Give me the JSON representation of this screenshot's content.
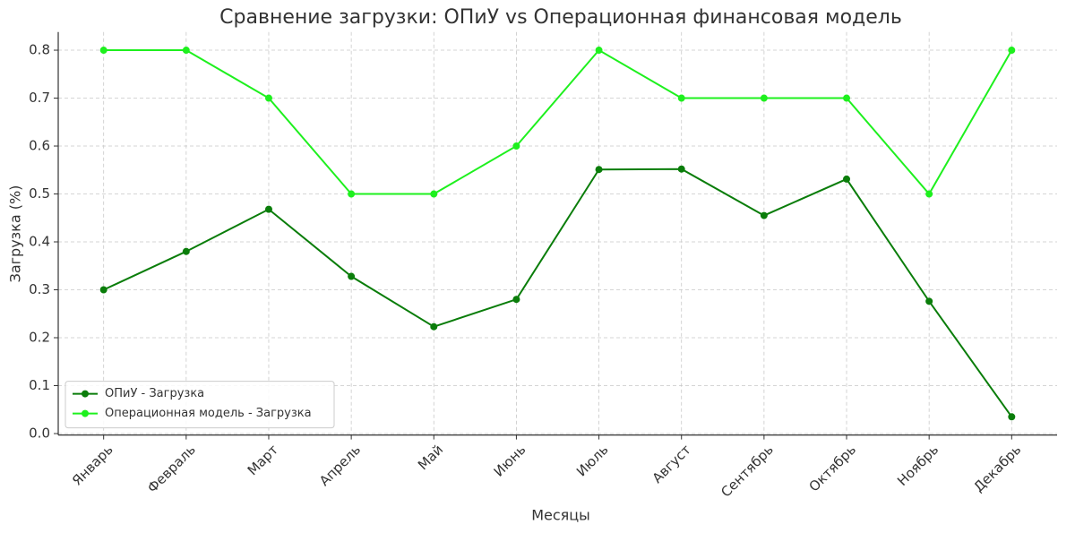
{
  "chart_data": {
    "type": "line",
    "title": "Сравнение загрузки: ОПиУ vs Операционная финансовая модель",
    "x_label": "Месяцы",
    "y_label": "Загрузка (%)",
    "categories": [
      "Январь",
      "Февраль",
      "Март",
      "Апрель",
      "Май",
      "Июнь",
      "Июль",
      "Август",
      "Сентябрь",
      "Октябрь",
      "Ноябрь",
      "Декабрь"
    ],
    "series": [
      {
        "name": "ОПиУ - Загрузка",
        "color": "#0a7d0a",
        "values": [
          0.3,
          0.38,
          0.468,
          0.328,
          0.223,
          0.28,
          0.551,
          0.552,
          0.455,
          0.531,
          0.276,
          0.035
        ]
      },
      {
        "name": "Операционная модель - Загрузка",
        "color": "#1ef01e",
        "values": [
          0.8,
          0.8,
          0.7,
          0.5,
          0.5,
          0.6,
          0.8,
          0.7,
          0.7,
          0.7,
          0.5,
          0.8
        ]
      }
    ],
    "ylim": [
      -0.003,
      0.838
    ],
    "yticks": [
      {
        "value": 0,
        "label": "0.0"
      },
      0.1,
      0.2,
      0.3,
      0.4,
      0.5,
      0.6,
      0.7,
      0.8
    ],
    "grid": true,
    "legend": "lower left"
  }
}
